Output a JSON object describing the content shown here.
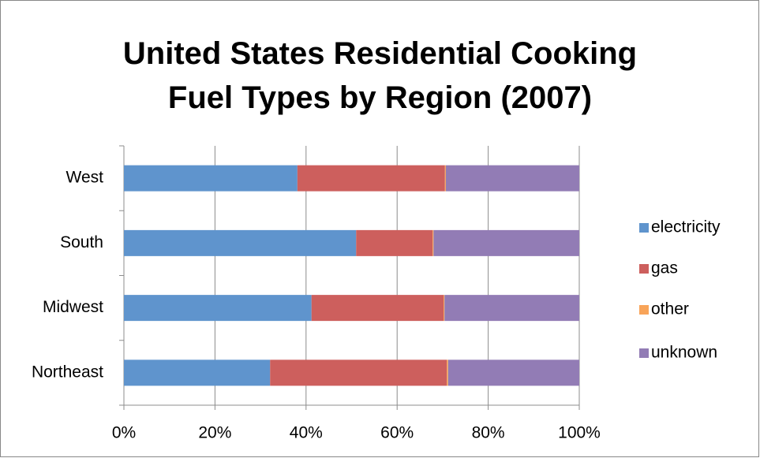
{
  "chart_data": {
    "type": "stacked-bar-horizontal",
    "title": "United States Residential Cooking Fuel Types by Region (2007)",
    "categories": [
      "Northeast",
      "Midwest",
      "South",
      "West"
    ],
    "series": [
      {
        "name": "electricity",
        "color": "#5f94cd",
        "values": [
          32.1,
          41.2,
          51.0,
          38.1
        ]
      },
      {
        "name": "gas",
        "color": "#cd5f5d",
        "values": [
          38.8,
          29.0,
          16.8,
          32.4
        ]
      },
      {
        "name": "other",
        "color": "#f8a459",
        "values": [
          0.3,
          0.2,
          0.2,
          0.2
        ]
      },
      {
        "name": "unknown",
        "color": "#927cb5",
        "values": [
          28.8,
          29.6,
          32.0,
          29.3
        ]
      }
    ],
    "xlim": [
      0,
      100
    ],
    "xticks": [
      {
        "value": 0,
        "label": "0%"
      },
      {
        "value": 20,
        "label": "20%"
      },
      {
        "value": 40,
        "label": "40%"
      },
      {
        "value": 60,
        "label": "60%"
      },
      {
        "value": 80,
        "label": "80%"
      },
      {
        "value": 100,
        "label": "100%"
      }
    ],
    "grid": true,
    "legend": "right"
  }
}
